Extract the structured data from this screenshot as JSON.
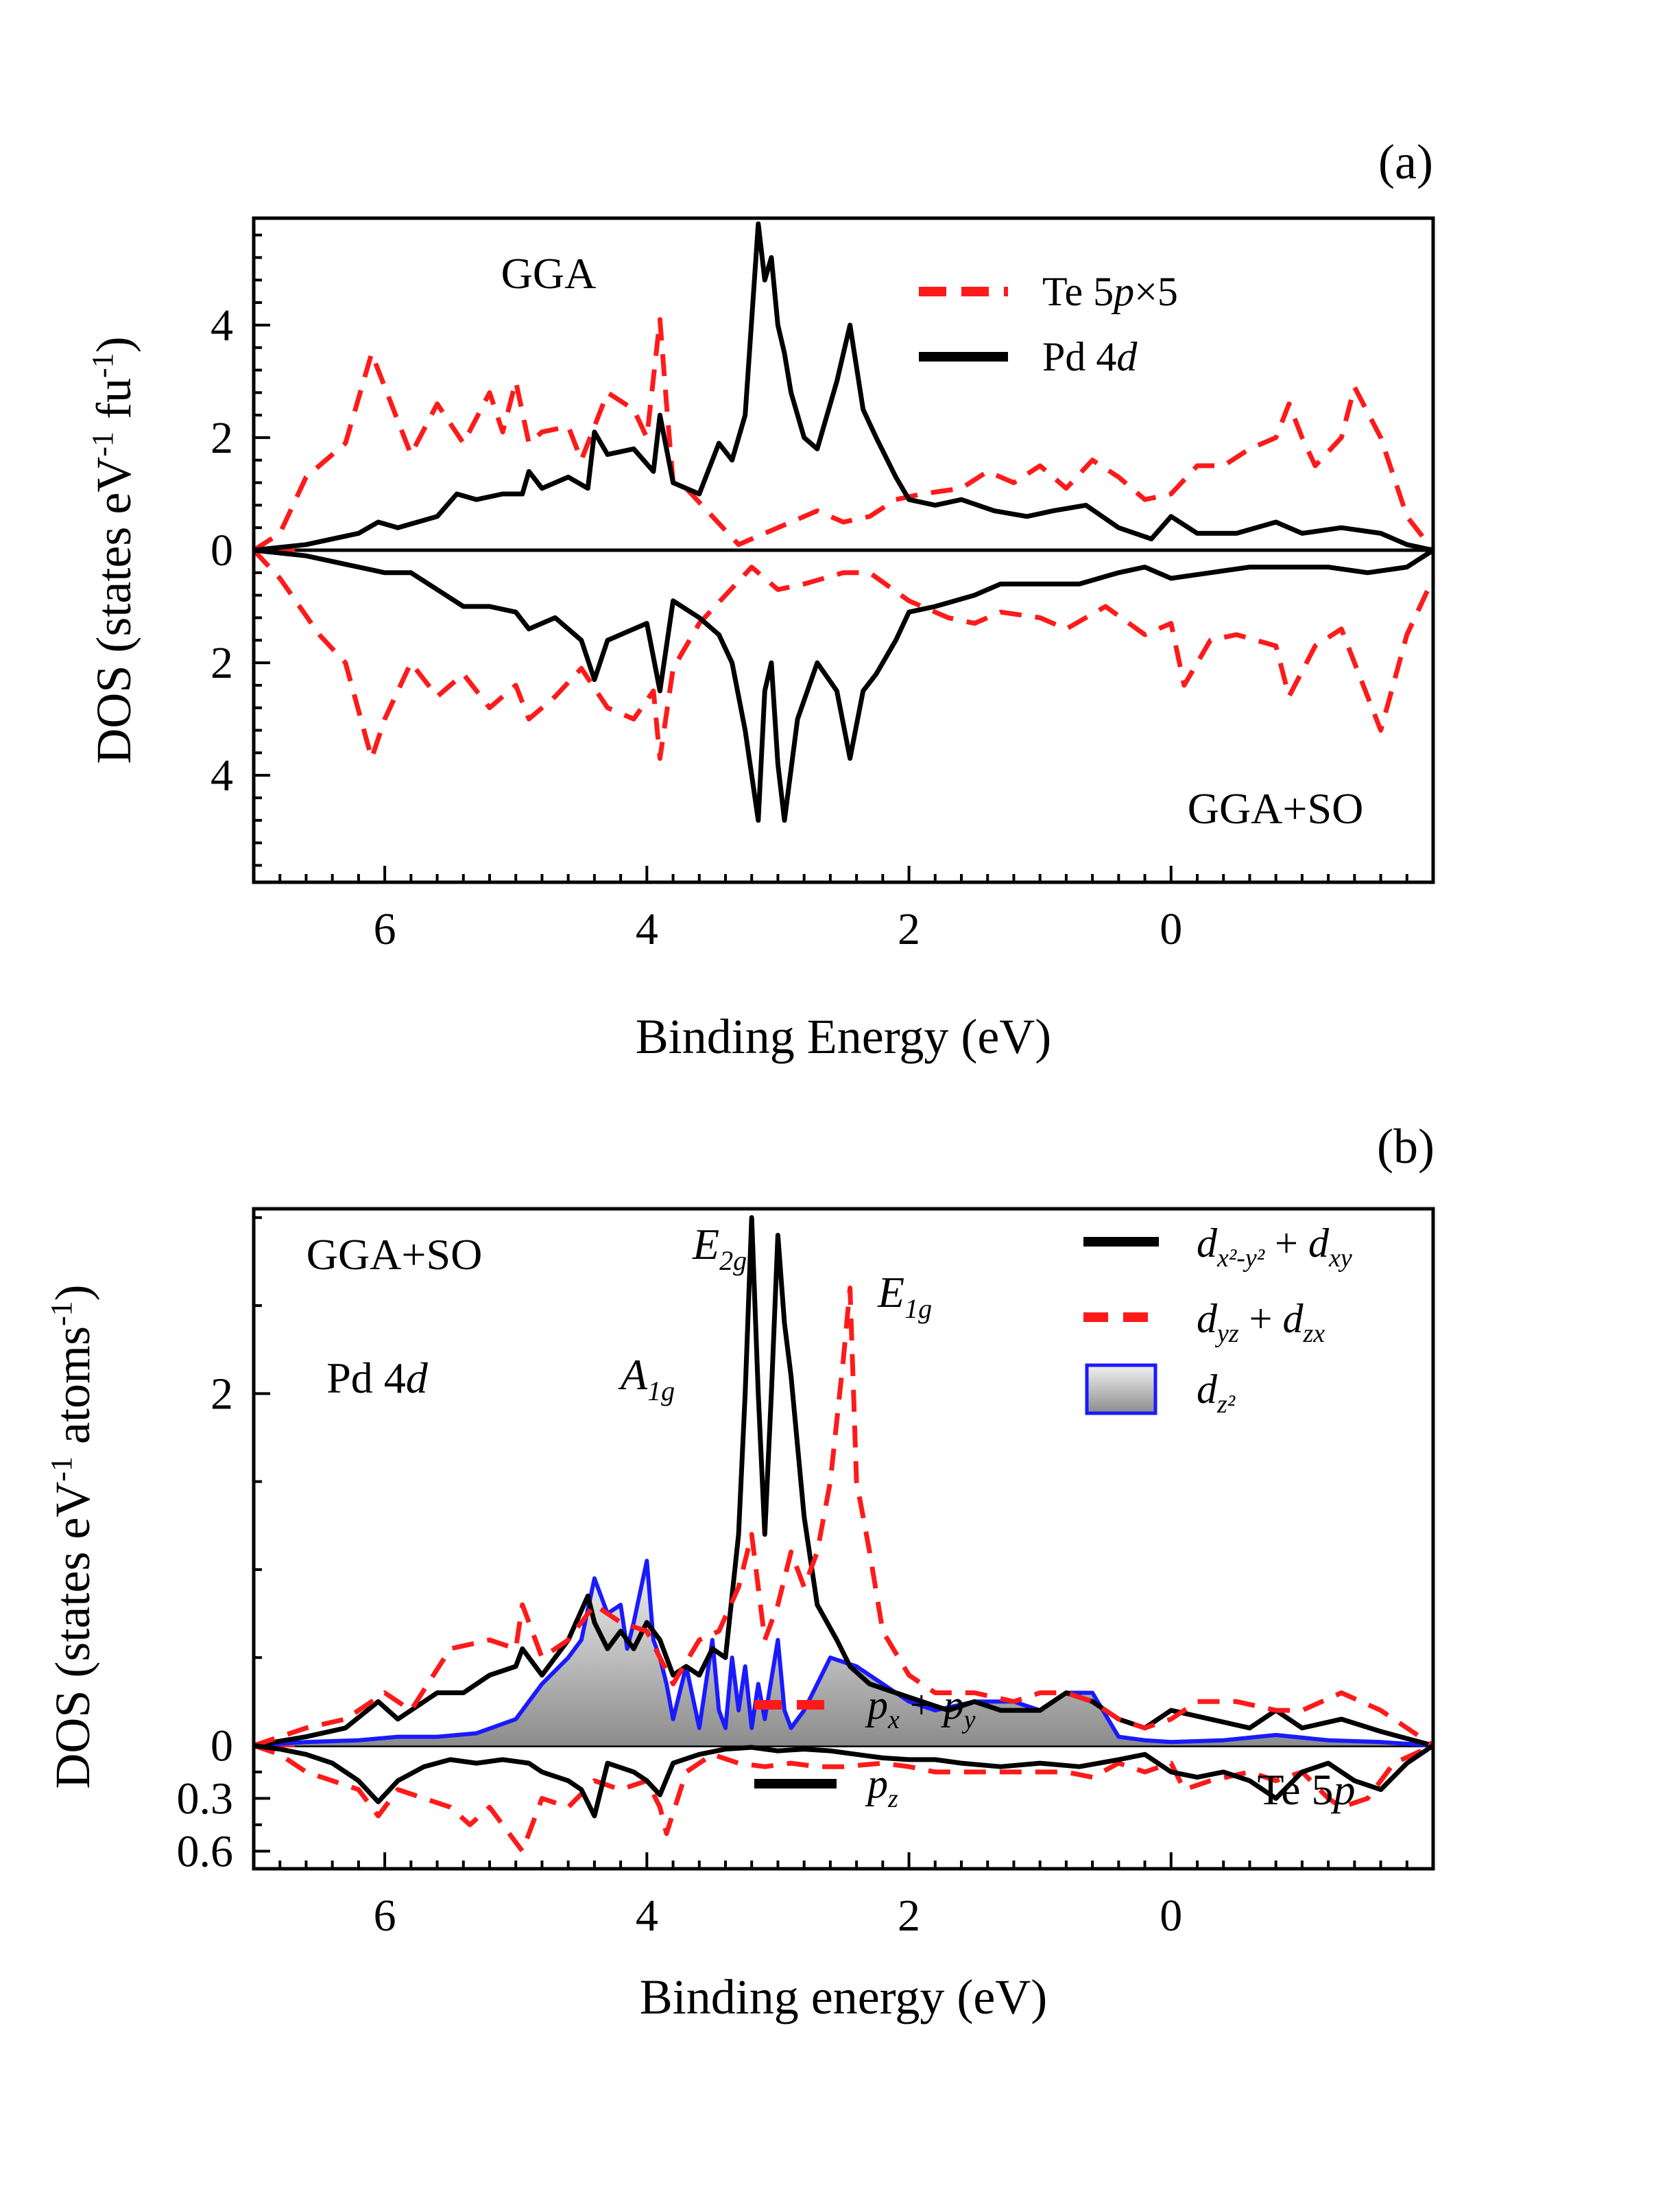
{
  "chart_data": [
    {
      "type": "line",
      "panel_label": "(a)",
      "xlabel": "Binding Energy (eV)",
      "ylabel": "DOS (states eV⁻¹ fu⁻¹)",
      "xlim": [
        7.0,
        -2.0
      ],
      "ylim": [
        -5.9,
        5.9
      ],
      "x_ticks": [
        6,
        4,
        2,
        0
      ],
      "x_tick_labels": [
        "6",
        "4",
        "2",
        "0"
      ],
      "y_ticks": [
        4,
        2,
        0,
        -2,
        -4
      ],
      "y_tick_labels": [
        "4",
        "2",
        "0",
        "2",
        "4"
      ],
      "annotations": {
        "top": "GGA",
        "bottom": "GGA+SO"
      },
      "legend": [
        {
          "label": "Te 5p×5",
          "style": "dashed",
          "color": "#ff1a1a"
        },
        {
          "label": "Pd 4d",
          "style": "solid",
          "color": "#000000"
        }
      ],
      "series": [
        {
          "name": "Te 5p×5 (GGA)",
          "color": "#ff1a1a",
          "style": "dashed",
          "x": [
            7.0,
            6.8,
            6.6,
            6.3,
            6.1,
            6.0,
            5.8,
            5.6,
            5.4,
            5.2,
            5.1,
            5.0,
            4.9,
            4.8,
            4.6,
            4.5,
            4.3,
            4.1,
            4.0,
            3.9,
            3.85,
            3.8,
            3.7,
            3.5,
            3.3,
            3.1,
            2.9,
            2.7,
            2.5,
            2.3,
            2.1,
            1.9,
            1.6,
            1.4,
            1.2,
            1.0,
            0.8,
            0.6,
            0.4,
            0.2,
            0.0,
            -0.2,
            -0.4,
            -0.6,
            -0.8,
            -0.9,
            -1.0,
            -1.1,
            -1.3,
            -1.4,
            -1.6,
            -1.8,
            -2.0
          ],
          "y": [
            0.0,
            0.3,
            1.3,
            1.9,
            3.5,
            2.9,
            1.7,
            2.6,
            1.9,
            2.8,
            2.1,
            3.0,
            1.9,
            2.1,
            2.2,
            1.6,
            2.8,
            2.5,
            2.0,
            4.1,
            2.6,
            1.2,
            1.1,
            0.6,
            0.1,
            0.3,
            0.5,
            0.7,
            0.5,
            0.6,
            0.9,
            1.0,
            1.1,
            1.4,
            1.2,
            1.5,
            1.1,
            1.6,
            1.3,
            0.9,
            1.0,
            1.5,
            1.5,
            1.8,
            2.0,
            2.6,
            2.0,
            1.5,
            2.0,
            2.9,
            2.0,
            0.6,
            0.0
          ]
        },
        {
          "name": "Pd 4d (GGA)",
          "color": "#000000",
          "style": "solid",
          "x": [
            7.0,
            6.6,
            6.2,
            6.05,
            5.9,
            5.6,
            5.45,
            5.3,
            5.1,
            4.95,
            4.9,
            4.8,
            4.6,
            4.45,
            4.4,
            4.3,
            4.1,
            3.95,
            3.9,
            3.8,
            3.6,
            3.45,
            3.35,
            3.25,
            3.15,
            3.1,
            3.05,
            3.0,
            2.95,
            2.9,
            2.8,
            2.7,
            2.55,
            2.45,
            2.35,
            2.25,
            2.1,
            2.0,
            1.8,
            1.6,
            1.35,
            1.1,
            0.9,
            0.65,
            0.4,
            0.15,
            0.0,
            -0.2,
            -0.5,
            -0.8,
            -1.0,
            -1.3,
            -1.6,
            -1.8,
            -2.0
          ],
          "y": [
            0.0,
            0.1,
            0.3,
            0.5,
            0.4,
            0.6,
            1.0,
            0.9,
            1.0,
            1.0,
            1.4,
            1.1,
            1.3,
            1.1,
            2.1,
            1.7,
            1.8,
            1.4,
            2.4,
            1.2,
            1.0,
            1.9,
            1.6,
            2.4,
            5.8,
            4.8,
            5.2,
            4.0,
            3.5,
            2.8,
            2.0,
            1.8,
            3.0,
            4.0,
            2.5,
            2.0,
            1.3,
            0.9,
            0.8,
            0.9,
            0.7,
            0.6,
            0.7,
            0.8,
            0.4,
            0.2,
            0.6,
            0.3,
            0.3,
            0.5,
            0.3,
            0.4,
            0.3,
            0.1,
            0.0
          ]
        },
        {
          "name": "Te 5p×5 (GGA+SO)",
          "color": "#ff1a1a",
          "style": "dashed",
          "x": [
            7.0,
            6.8,
            6.5,
            6.3,
            6.1,
            6.0,
            5.8,
            5.6,
            5.4,
            5.2,
            5.0,
            4.9,
            4.7,
            4.5,
            4.3,
            4.1,
            3.95,
            3.9,
            3.8,
            3.6,
            3.4,
            3.2,
            3.0,
            2.8,
            2.5,
            2.3,
            2.0,
            1.7,
            1.5,
            1.3,
            1.0,
            0.8,
            0.5,
            0.2,
            0.0,
            -0.1,
            -0.3,
            -0.5,
            -0.8,
            -0.9,
            -1.1,
            -1.3,
            -1.4,
            -1.6,
            -1.8,
            -2.0
          ],
          "y": [
            0.0,
            -0.5,
            -1.5,
            -2.0,
            -3.7,
            -3.0,
            -2.0,
            -2.6,
            -2.2,
            -2.8,
            -2.4,
            -3.0,
            -2.6,
            -2.1,
            -2.8,
            -3.0,
            -2.5,
            -3.7,
            -2.1,
            -1.3,
            -0.8,
            -0.3,
            -0.7,
            -0.6,
            -0.4,
            -0.4,
            -0.9,
            -1.2,
            -1.3,
            -1.1,
            -1.2,
            -1.4,
            -1.0,
            -1.5,
            -1.3,
            -2.4,
            -1.6,
            -1.5,
            -1.7,
            -2.6,
            -1.7,
            -1.4,
            -2.0,
            -3.2,
            -1.5,
            -0.5
          ]
        },
        {
          "name": "Pd 4d (GGA+SO)",
          "color": "#000000",
          "style": "solid",
          "x": [
            7.0,
            6.6,
            6.2,
            6.0,
            5.8,
            5.6,
            5.4,
            5.2,
            5.0,
            4.9,
            4.7,
            4.5,
            4.4,
            4.3,
            4.1,
            4.0,
            3.9,
            3.8,
            3.6,
            3.45,
            3.35,
            3.25,
            3.15,
            3.1,
            3.05,
            3.0,
            2.95,
            2.85,
            2.7,
            2.55,
            2.45,
            2.35,
            2.25,
            2.1,
            2.0,
            1.8,
            1.5,
            1.3,
            1.0,
            0.7,
            0.4,
            0.2,
            0.0,
            -0.3,
            -0.6,
            -0.9,
            -1.2,
            -1.5,
            -1.8,
            -2.0
          ],
          "y": [
            0.0,
            -0.1,
            -0.3,
            -0.4,
            -0.4,
            -0.7,
            -1.0,
            -1.0,
            -1.1,
            -1.4,
            -1.2,
            -1.6,
            -2.3,
            -1.6,
            -1.4,
            -1.3,
            -2.5,
            -0.9,
            -1.2,
            -1.5,
            -2.0,
            -3.2,
            -4.8,
            -2.5,
            -2.0,
            -3.8,
            -4.8,
            -3.0,
            -2.0,
            -2.5,
            -3.7,
            -2.5,
            -2.2,
            -1.6,
            -1.1,
            -1.0,
            -0.8,
            -0.6,
            -0.6,
            -0.6,
            -0.4,
            -0.3,
            -0.5,
            -0.4,
            -0.3,
            -0.3,
            -0.3,
            -0.4,
            -0.3,
            0.0
          ]
        }
      ]
    },
    {
      "type": "line",
      "panel_label": "(b)",
      "xlabel": "Binding energy (eV)",
      "ylabel": "DOS (states eV⁻¹ atoms⁻¹)",
      "xlim": [
        7.0,
        -2.0
      ],
      "ylim": [
        -0.7,
        3.05
      ],
      "x_ticks": [
        6,
        4,
        2,
        0
      ],
      "x_tick_labels": [
        "6",
        "4",
        "2",
        "0"
      ],
      "y_ticks": [
        2,
        0,
        -0.3,
        -0.6
      ],
      "y_tick_labels": [
        "2",
        "0",
        "0.3",
        "0.6"
      ],
      "annotations": {
        "gga_so": "GGA+SO",
        "pd": "Pd 4d",
        "te": "Te 5p",
        "e2g": "E2g",
        "e1g": "E1g",
        "a1g": "A1g"
      },
      "legend_top": [
        {
          "label": "dx²-y² + dxy",
          "style": "solid",
          "color": "#000000"
        },
        {
          "label": "dyz + dzx",
          "style": "dashed",
          "color": "#ff1a1a"
        },
        {
          "label": "dz²",
          "style": "filled",
          "color": "#1a1aff"
        }
      ],
      "legend_bottom": [
        {
          "label": "px + py",
          "style": "dashed",
          "color": "#ff1a1a"
        },
        {
          "label": "pz",
          "style": "solid",
          "color": "#000000"
        }
      ],
      "series": [
        {
          "name": "dz²",
          "color": "#1a1aff",
          "style": "filled",
          "x": [
            7.0,
            6.6,
            6.2,
            5.9,
            5.6,
            5.3,
            5.0,
            4.8,
            4.6,
            4.5,
            4.4,
            4.3,
            4.2,
            4.15,
            4.1,
            4.0,
            3.95,
            3.9,
            3.85,
            3.8,
            3.7,
            3.6,
            3.5,
            3.45,
            3.4,
            3.35,
            3.3,
            3.25,
            3.2,
            3.15,
            3.1,
            3.0,
            2.95,
            2.9,
            2.8,
            2.6,
            2.4,
            2.2,
            2.0,
            1.8,
            1.5,
            1.2,
            1.0,
            0.8,
            0.6,
            0.4,
            0.2,
            0.0,
            -0.4,
            -0.8,
            -1.2,
            -1.6,
            -2.0
          ],
          "y": [
            0.0,
            0.02,
            0.03,
            0.05,
            0.05,
            0.07,
            0.15,
            0.35,
            0.5,
            0.6,
            0.95,
            0.75,
            0.8,
            0.55,
            0.7,
            1.05,
            0.6,
            0.5,
            0.35,
            0.15,
            0.45,
            0.1,
            0.6,
            0.2,
            0.1,
            0.5,
            0.2,
            0.45,
            0.1,
            0.35,
            0.15,
            0.6,
            0.2,
            0.1,
            0.2,
            0.5,
            0.45,
            0.35,
            0.25,
            0.2,
            0.25,
            0.25,
            0.2,
            0.3,
            0.3,
            0.05,
            0.03,
            0.02,
            0.03,
            0.06,
            0.03,
            0.02,
            0.0
          ]
        },
        {
          "name": "dx²-y² + dxy",
          "color": "#000000",
          "style": "solid",
          "x": [
            7.0,
            6.6,
            6.3,
            6.05,
            5.9,
            5.6,
            5.4,
            5.2,
            5.0,
            4.95,
            4.8,
            4.6,
            4.45,
            4.4,
            4.3,
            4.2,
            4.1,
            4.0,
            3.9,
            3.8,
            3.7,
            3.6,
            3.5,
            3.4,
            3.3,
            3.25,
            3.2,
            3.15,
            3.1,
            3.05,
            3.0,
            2.95,
            2.9,
            2.8,
            2.7,
            2.55,
            2.45,
            2.3,
            2.1,
            1.9,
            1.7,
            1.5,
            1.3,
            1.0,
            0.8,
            0.6,
            0.4,
            0.2,
            0.0,
            -0.3,
            -0.6,
            -0.8,
            -1.0,
            -1.3,
            -1.6,
            -2.0
          ],
          "y": [
            0.0,
            0.05,
            0.1,
            0.25,
            0.15,
            0.3,
            0.3,
            0.4,
            0.45,
            0.55,
            0.4,
            0.6,
            0.85,
            0.7,
            0.55,
            0.65,
            0.55,
            0.7,
            0.6,
            0.4,
            0.45,
            0.4,
            0.55,
            0.5,
            1.2,
            2.0,
            3.0,
            2.0,
            1.2,
            2.0,
            2.9,
            2.4,
            2.1,
            1.3,
            0.8,
            0.6,
            0.45,
            0.35,
            0.3,
            0.25,
            0.2,
            0.25,
            0.2,
            0.2,
            0.3,
            0.25,
            0.15,
            0.1,
            0.2,
            0.15,
            0.1,
            0.2,
            0.1,
            0.15,
            0.08,
            0.0
          ]
        },
        {
          "name": "dyz + dzx",
          "color": "#ff1a1a",
          "style": "dashed",
          "x": [
            7.0,
            6.6,
            6.3,
            6.0,
            5.8,
            5.5,
            5.2,
            5.0,
            4.95,
            4.8,
            4.6,
            4.4,
            4.2,
            4.0,
            3.9,
            3.8,
            3.6,
            3.45,
            3.3,
            3.2,
            3.1,
            3.0,
            2.9,
            2.8,
            2.7,
            2.6,
            2.5,
            2.45,
            2.4,
            2.35,
            2.3,
            2.2,
            2.0,
            1.8,
            1.5,
            1.2,
            1.0,
            0.8,
            0.6,
            0.4,
            0.2,
            0.0,
            -0.2,
            -0.5,
            -0.8,
            -1.0,
            -1.3,
            -1.6,
            -2.0
          ],
          "y": [
            0.0,
            0.1,
            0.15,
            0.3,
            0.2,
            0.55,
            0.6,
            0.55,
            0.8,
            0.5,
            0.6,
            0.8,
            0.7,
            0.65,
            0.5,
            0.35,
            0.6,
            0.65,
            0.9,
            1.2,
            0.6,
            0.8,
            1.1,
            0.9,
            1.1,
            1.5,
            2.2,
            2.6,
            1.5,
            1.3,
            1.1,
            0.65,
            0.4,
            0.3,
            0.3,
            0.25,
            0.3,
            0.3,
            0.25,
            0.15,
            0.1,
            0.15,
            0.25,
            0.25,
            0.2,
            0.2,
            0.3,
            0.2,
            0.0
          ]
        },
        {
          "name": "px + py",
          "color": "#ff1a1a",
          "style": "dashed",
          "x": [
            7.0,
            6.8,
            6.6,
            6.4,
            6.2,
            6.05,
            5.9,
            5.7,
            5.5,
            5.35,
            5.2,
            5.0,
            4.95,
            4.8,
            4.6,
            4.4,
            4.2,
            4.0,
            3.9,
            3.85,
            3.7,
            3.5,
            3.3,
            3.1,
            2.9,
            2.7,
            2.5,
            2.2,
            2.0,
            1.8,
            1.5,
            1.2,
            1.0,
            0.8,
            0.6,
            0.4,
            0.2,
            0.0,
            -0.1,
            -0.3,
            -0.6,
            -0.8,
            -1.0,
            -1.2,
            -1.3,
            -1.5,
            -1.7,
            -2.0
          ],
          "y": [
            0.0,
            -0.05,
            -0.15,
            -0.2,
            -0.25,
            -0.4,
            -0.25,
            -0.3,
            -0.35,
            -0.45,
            -0.35,
            -0.55,
            -0.6,
            -0.3,
            -0.35,
            -0.2,
            -0.25,
            -0.2,
            -0.35,
            -0.5,
            -0.15,
            -0.05,
            -0.1,
            -0.12,
            -0.1,
            -0.12,
            -0.12,
            -0.1,
            -0.12,
            -0.15,
            -0.15,
            -0.15,
            -0.15,
            -0.15,
            -0.18,
            -0.1,
            -0.15,
            -0.1,
            -0.25,
            -0.2,
            -0.15,
            -0.2,
            -0.15,
            -0.3,
            -0.35,
            -0.3,
            -0.1,
            0.0
          ]
        },
        {
          "name": "pz",
          "color": "#000000",
          "style": "solid",
          "x": [
            7.0,
            6.8,
            6.6,
            6.4,
            6.2,
            6.05,
            5.9,
            5.7,
            5.5,
            5.3,
            5.1,
            4.9,
            4.8,
            4.6,
            4.5,
            4.4,
            4.3,
            4.1,
            4.0,
            3.9,
            3.8,
            3.6,
            3.4,
            3.2,
            3.0,
            2.8,
            2.6,
            2.4,
            2.2,
            2.0,
            1.8,
            1.6,
            1.3,
            1.0,
            0.7,
            0.4,
            0.2,
            0.0,
            -0.2,
            -0.4,
            -0.6,
            -0.8,
            -1.0,
            -1.2,
            -1.4,
            -1.6,
            -1.8,
            -2.0
          ],
          "y": [
            0.0,
            -0.02,
            -0.05,
            -0.1,
            -0.2,
            -0.32,
            -0.2,
            -0.12,
            -0.08,
            -0.1,
            -0.08,
            -0.1,
            -0.15,
            -0.2,
            -0.25,
            -0.4,
            -0.1,
            -0.15,
            -0.2,
            -0.28,
            -0.1,
            -0.05,
            -0.02,
            -0.01,
            -0.03,
            -0.02,
            -0.03,
            -0.05,
            -0.07,
            -0.08,
            -0.08,
            -0.1,
            -0.12,
            -0.1,
            -0.12,
            -0.08,
            -0.05,
            -0.15,
            -0.18,
            -0.15,
            -0.2,
            -0.3,
            -0.15,
            -0.1,
            -0.2,
            -0.25,
            -0.1,
            0.0
          ]
        }
      ]
    }
  ]
}
